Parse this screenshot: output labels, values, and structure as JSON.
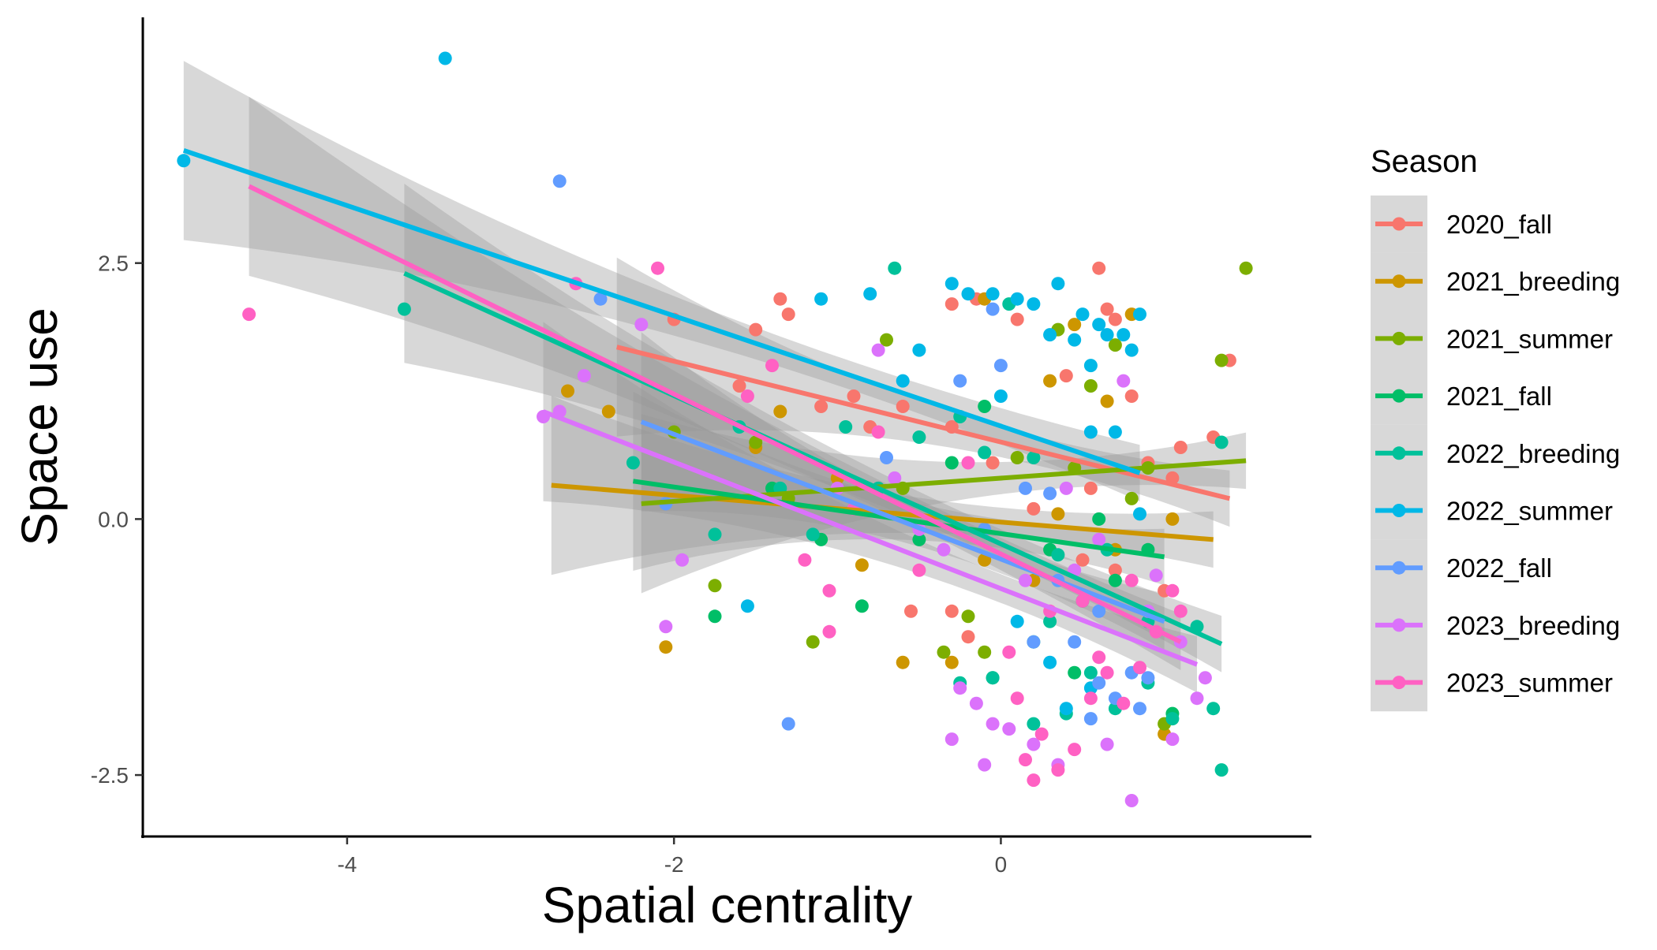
{
  "chart_data": {
    "type": "scatter",
    "title": "",
    "xlabel": "Spatial centrality",
    "ylabel": "Space use",
    "xlim": [
      -5.25,
      1.9
    ],
    "ylim": [
      -3.1,
      4.9
    ],
    "xticks": [
      -4,
      -2,
      0
    ],
    "xtick_labels": [
      "-4",
      "-2",
      "0"
    ],
    "yticks": [
      -2.5,
      0.0,
      2.5
    ],
    "ytick_labels": [
      "-2.5",
      "0.0",
      "2.5"
    ],
    "grid": false,
    "legend": {
      "title": "Season",
      "position": "right"
    },
    "series": [
      {
        "name": "2020_fall",
        "color": "#F8766D",
        "fit": {
          "x": [
            -2.35,
            1.4
          ],
          "y": [
            1.68,
            0.2
          ]
        },
        "points": [
          [
            -2.0,
            1.95
          ],
          [
            -1.35,
            2.15
          ],
          [
            -1.3,
            2.0
          ],
          [
            -1.5,
            1.85
          ],
          [
            -1.1,
            1.1
          ],
          [
            -0.9,
            1.2
          ],
          [
            -0.6,
            1.1
          ],
          [
            -0.3,
            0.9
          ],
          [
            -0.3,
            2.1
          ],
          [
            -0.15,
            2.15
          ],
          [
            0.1,
            1.95
          ],
          [
            0.4,
            1.4
          ],
          [
            0.55,
            0.3
          ],
          [
            0.6,
            2.45
          ],
          [
            0.65,
            2.05
          ],
          [
            0.7,
            1.95
          ],
          [
            0.8,
            1.2
          ],
          [
            0.9,
            0.55
          ],
          [
            1.05,
            0.4
          ],
          [
            1.1,
            0.7
          ],
          [
            1.4,
            1.55
          ],
          [
            1.3,
            0.8
          ],
          [
            -0.55,
            -0.9
          ],
          [
            -0.3,
            -0.9
          ],
          [
            -0.2,
            -1.15
          ],
          [
            -0.05,
            0.55
          ],
          [
            0.2,
            0.1
          ],
          [
            0.5,
            -0.4
          ],
          [
            0.7,
            -0.5
          ],
          [
            1.0,
            -0.7
          ],
          [
            -1.6,
            1.3
          ],
          [
            -0.8,
            0.9
          ]
        ]
      },
      {
        "name": "2021_breeding",
        "color": "#CD9600",
        "fit": {
          "x": [
            -2.75,
            1.3
          ],
          "y": [
            0.33,
            -0.2
          ]
        },
        "points": [
          [
            -2.65,
            1.25
          ],
          [
            -2.4,
            1.05
          ],
          [
            -2.05,
            -1.25
          ],
          [
            -1.35,
            1.05
          ],
          [
            -0.85,
            -0.45
          ],
          [
            -0.6,
            -1.4
          ],
          [
            -0.3,
            -1.4
          ],
          [
            -0.1,
            2.15
          ],
          [
            0.3,
            1.35
          ],
          [
            0.45,
            1.9
          ],
          [
            0.65,
            1.15
          ],
          [
            0.8,
            2.0
          ],
          [
            1.0,
            -2.1
          ],
          [
            1.05,
            0.0
          ],
          [
            -0.1,
            -0.4
          ],
          [
            0.35,
            0.05
          ],
          [
            0.7,
            -0.3
          ],
          [
            -1.5,
            0.7
          ],
          [
            -1.0,
            0.4
          ],
          [
            0.2,
            -0.6
          ]
        ]
      },
      {
        "name": "2021_summer",
        "color": "#7CAE00",
        "fit": {
          "x": [
            -2.2,
            1.5
          ],
          "y": [
            0.15,
            0.57
          ]
        },
        "points": [
          [
            -2.0,
            0.85
          ],
          [
            -1.75,
            -0.65
          ],
          [
            -1.5,
            0.75
          ],
          [
            -1.15,
            -1.2
          ],
          [
            -0.7,
            1.75
          ],
          [
            -0.35,
            -1.3
          ],
          [
            -0.2,
            -0.95
          ],
          [
            -0.1,
            -1.3
          ],
          [
            0.35,
            1.85
          ],
          [
            0.55,
            1.3
          ],
          [
            0.7,
            1.7
          ],
          [
            0.9,
            0.5
          ],
          [
            1.0,
            -2.0
          ],
          [
            1.35,
            1.55
          ],
          [
            1.5,
            2.45
          ],
          [
            -0.6,
            0.3
          ],
          [
            0.1,
            0.6
          ],
          [
            0.45,
            0.5
          ],
          [
            -1.3,
            0.2
          ],
          [
            0.8,
            0.2
          ]
        ]
      },
      {
        "name": "2021_fall",
        "color": "#00BE67",
        "fit": {
          "x": [
            -2.25,
            1.0
          ],
          "y": [
            0.37,
            -0.37
          ]
        },
        "points": [
          [
            -1.75,
            -0.95
          ],
          [
            -0.85,
            -0.85
          ],
          [
            -0.3,
            0.55
          ],
          [
            -0.1,
            1.1
          ],
          [
            -0.05,
            -1.55
          ],
          [
            0.2,
            -1.2
          ],
          [
            0.45,
            -1.5
          ],
          [
            0.6,
            0.0
          ],
          [
            1.05,
            -1.9
          ],
          [
            -1.1,
            -0.2
          ],
          [
            -0.5,
            -0.2
          ],
          [
            0.3,
            -0.3
          ],
          [
            0.7,
            -0.6
          ],
          [
            0.9,
            -0.3
          ],
          [
            -1.4,
            0.3
          ],
          [
            0.5,
            -0.8
          ]
        ]
      },
      {
        "name": "2022_breeding",
        "color": "#00C19A",
        "fit": {
          "x": [
            -3.65,
            1.35
          ],
          "y": [
            2.4,
            -1.22
          ]
        },
        "points": [
          [
            -3.65,
            2.05
          ],
          [
            -2.25,
            0.55
          ],
          [
            -1.75,
            -0.15
          ],
          [
            -1.35,
            0.3
          ],
          [
            -1.15,
            -0.15
          ],
          [
            -0.95,
            0.9
          ],
          [
            -0.65,
            2.45
          ],
          [
            -0.5,
            0.8
          ],
          [
            -0.25,
            1.0
          ],
          [
            -0.1,
            0.65
          ],
          [
            0.05,
            2.1
          ],
          [
            0.2,
            0.6
          ],
          [
            0.35,
            -0.35
          ],
          [
            0.55,
            -1.5
          ],
          [
            0.7,
            -1.85
          ],
          [
            0.9,
            -1.6
          ],
          [
            1.05,
            -1.95
          ],
          [
            1.2,
            -1.05
          ],
          [
            1.35,
            -2.45
          ],
          [
            1.35,
            0.75
          ],
          [
            1.3,
            -1.85
          ],
          [
            0.4,
            -1.9
          ],
          [
            0.2,
            -2.0
          ],
          [
            -0.25,
            -1.6
          ],
          [
            -0.05,
            -1.55
          ],
          [
            0.65,
            -0.3
          ],
          [
            -1.6,
            0.9
          ],
          [
            -0.75,
            0.3
          ],
          [
            0.3,
            -1.0
          ],
          [
            0.9,
            -1.0
          ]
        ]
      },
      {
        "name": "2022_summer",
        "color": "#00B8E7",
        "fit": {
          "x": [
            -5.0,
            0.85
          ],
          "y": [
            3.6,
            0.45
          ]
        },
        "points": [
          [
            -5.0,
            3.5
          ],
          [
            -3.4,
            4.5
          ],
          [
            -1.55,
            -0.85
          ],
          [
            -1.1,
            2.15
          ],
          [
            -0.8,
            2.2
          ],
          [
            -0.5,
            1.65
          ],
          [
            -0.3,
            2.3
          ],
          [
            -0.2,
            2.2
          ],
          [
            -0.05,
            2.2
          ],
          [
            0.1,
            2.15
          ],
          [
            0.2,
            2.1
          ],
          [
            0.3,
            1.8
          ],
          [
            0.35,
            2.3
          ],
          [
            0.45,
            1.75
          ],
          [
            0.5,
            2.0
          ],
          [
            0.55,
            1.5
          ],
          [
            0.6,
            1.9
          ],
          [
            0.65,
            1.8
          ],
          [
            0.75,
            1.8
          ],
          [
            0.8,
            1.65
          ],
          [
            0.85,
            2.0
          ],
          [
            0.55,
            0.85
          ],
          [
            0.7,
            0.85
          ],
          [
            0.85,
            0.05
          ],
          [
            0.3,
            -1.4
          ],
          [
            0.4,
            -1.85
          ],
          [
            0.55,
            -1.65
          ],
          [
            0.1,
            -1.0
          ],
          [
            -0.6,
            1.35
          ],
          [
            0.0,
            1.2
          ]
        ]
      },
      {
        "name": "2022_fall",
        "color": "#619CFF",
        "fit": {
          "x": [
            -2.2,
            1.0
          ],
          "y": [
            0.95,
            -1.0
          ]
        },
        "points": [
          [
            -2.7,
            3.3
          ],
          [
            -2.45,
            2.15
          ],
          [
            -2.05,
            0.15
          ],
          [
            -1.3,
            -2.0
          ],
          [
            -0.25,
            1.35
          ],
          [
            -0.05,
            2.05
          ],
          [
            0.0,
            1.5
          ],
          [
            0.2,
            -1.2
          ],
          [
            0.3,
            0.25
          ],
          [
            0.45,
            -1.2
          ],
          [
            0.55,
            -1.95
          ],
          [
            0.6,
            -1.6
          ],
          [
            0.7,
            -1.75
          ],
          [
            0.8,
            -1.5
          ],
          [
            0.85,
            -1.85
          ],
          [
            0.9,
            -1.55
          ],
          [
            -0.1,
            -0.1
          ],
          [
            0.35,
            -0.6
          ],
          [
            0.6,
            -0.9
          ],
          [
            -0.7,
            0.6
          ],
          [
            0.15,
            0.3
          ]
        ]
      },
      {
        "name": "2023_breeding",
        "color": "#DB72FB",
        "fit": {
          "x": [
            -2.8,
            1.2
          ],
          "y": [
            1.05,
            -1.42
          ]
        },
        "points": [
          [
            -2.8,
            1.0
          ],
          [
            -2.7,
            1.05
          ],
          [
            -2.55,
            1.4
          ],
          [
            -2.2,
            1.9
          ],
          [
            -2.05,
            -1.05
          ],
          [
            -1.95,
            -0.4
          ],
          [
            -0.75,
            1.65
          ],
          [
            -0.65,
            0.4
          ],
          [
            -0.35,
            -0.3
          ],
          [
            -0.3,
            -2.15
          ],
          [
            -0.25,
            -1.65
          ],
          [
            -0.15,
            -1.8
          ],
          [
            -0.1,
            -2.4
          ],
          [
            -0.05,
            -2.0
          ],
          [
            0.05,
            -2.05
          ],
          [
            0.2,
            -2.2
          ],
          [
            0.35,
            -2.4
          ],
          [
            0.65,
            -2.2
          ],
          [
            0.8,
            -2.75
          ],
          [
            0.95,
            -0.55
          ],
          [
            1.05,
            -2.15
          ],
          [
            1.2,
            -1.75
          ],
          [
            1.25,
            -1.55
          ],
          [
            0.75,
            1.35
          ],
          [
            0.4,
            0.3
          ],
          [
            0.6,
            -0.2
          ],
          [
            -0.5,
            -0.1
          ],
          [
            0.15,
            -0.6
          ],
          [
            0.45,
            -0.5
          ],
          [
            0.9,
            -0.9
          ],
          [
            1.1,
            -1.2
          ],
          [
            -1.0,
            0.3
          ]
        ]
      },
      {
        "name": "2023_summer",
        "color": "#FF61C3",
        "fit": {
          "x": [
            -4.6,
            1.1
          ],
          "y": [
            3.25,
            -1.2
          ]
        },
        "points": [
          [
            -4.6,
            2.0
          ],
          [
            -2.6,
            2.3
          ],
          [
            -2.1,
            2.45
          ],
          [
            -1.55,
            1.2
          ],
          [
            -1.4,
            1.5
          ],
          [
            -1.2,
            -0.4
          ],
          [
            -1.05,
            -0.7
          ],
          [
            -1.05,
            -1.1
          ],
          [
            -0.75,
            0.85
          ],
          [
            -0.2,
            0.55
          ],
          [
            0.05,
            -1.3
          ],
          [
            0.1,
            -1.75
          ],
          [
            0.15,
            -2.35
          ],
          [
            0.2,
            -2.55
          ],
          [
            0.25,
            -2.1
          ],
          [
            0.35,
            -2.45
          ],
          [
            0.45,
            -2.25
          ],
          [
            0.55,
            -1.75
          ],
          [
            0.6,
            -1.35
          ],
          [
            0.65,
            -1.5
          ],
          [
            0.75,
            -1.8
          ],
          [
            0.85,
            -1.45
          ],
          [
            0.95,
            -1.1
          ],
          [
            1.05,
            -0.7
          ],
          [
            1.1,
            -0.9
          ],
          [
            -0.5,
            -0.5
          ],
          [
            0.3,
            -0.9
          ],
          [
            0.5,
            -0.8
          ],
          [
            0.8,
            -0.6
          ],
          [
            -0.9,
            0.1
          ]
        ]
      }
    ]
  }
}
